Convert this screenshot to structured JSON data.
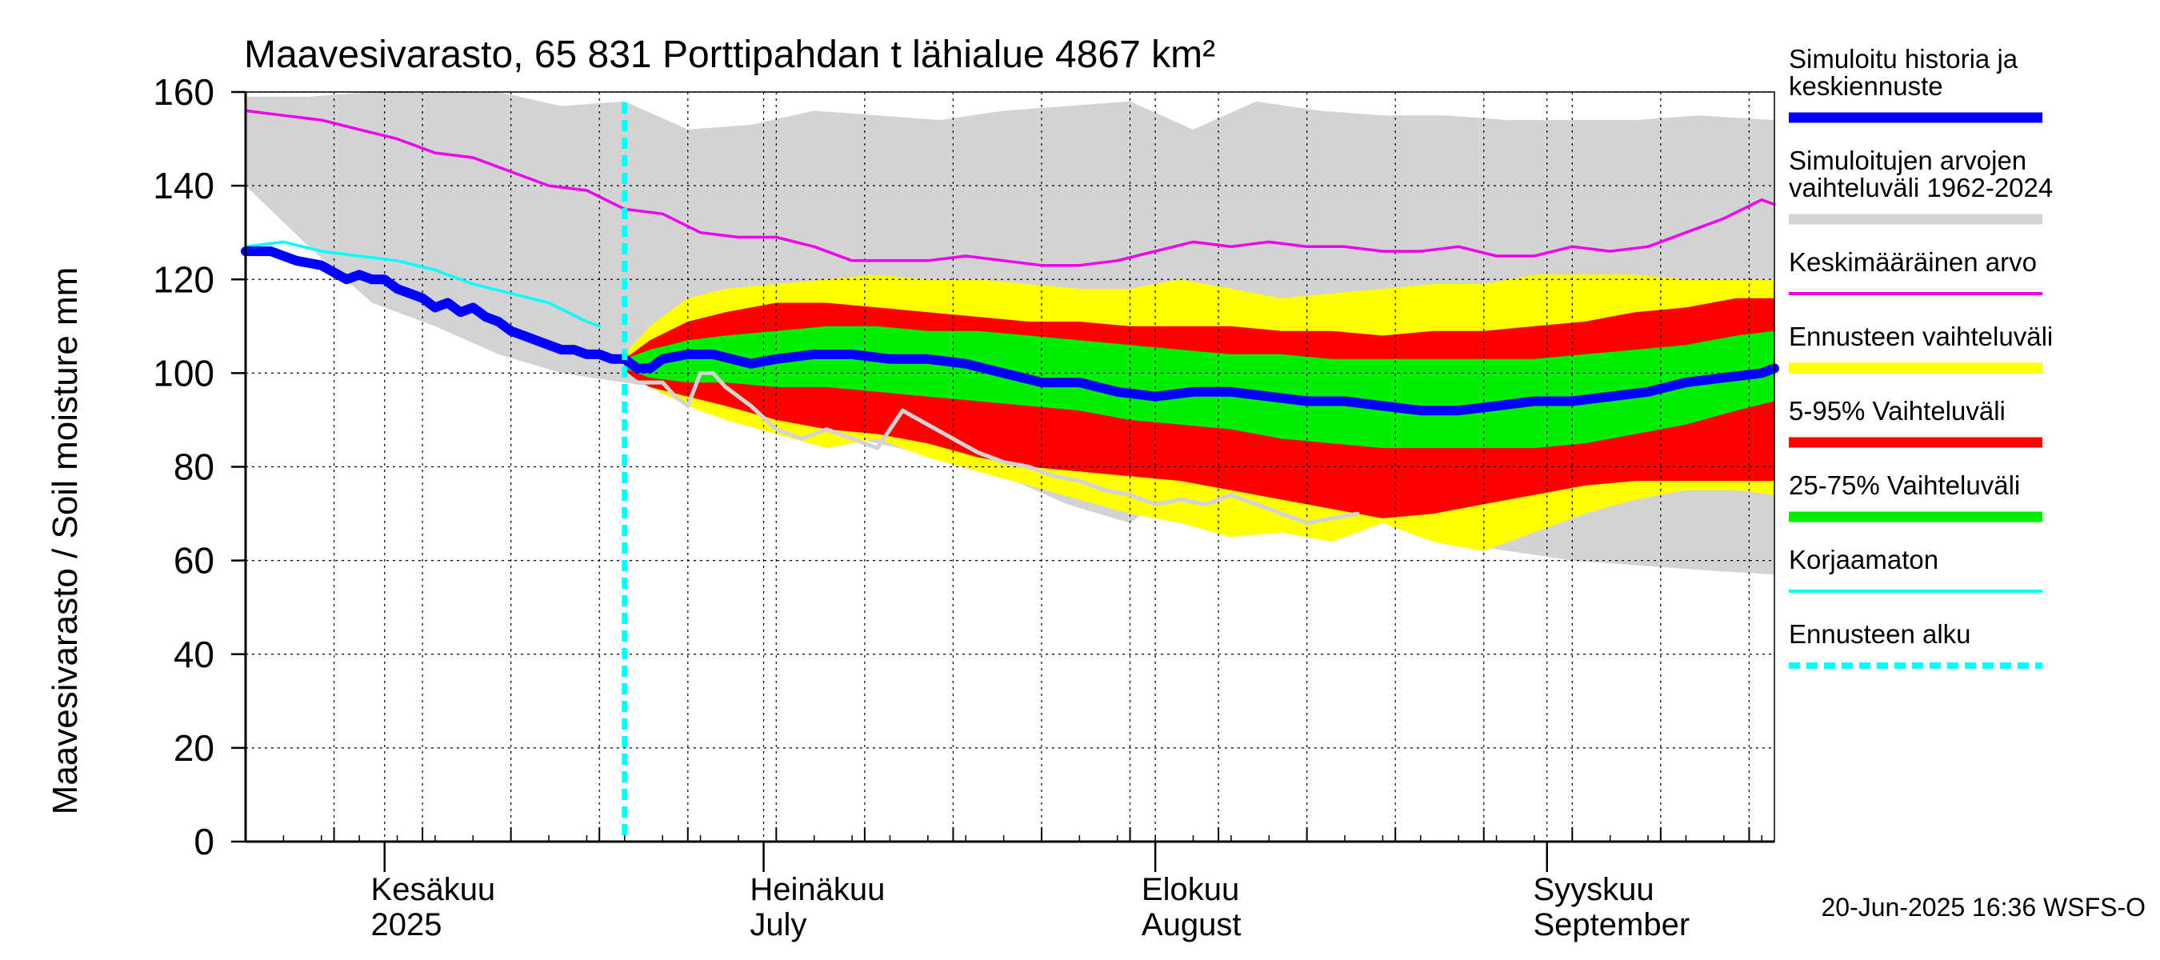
{
  "chart_data": {
    "type": "area",
    "title": "Maavesivarasto, 65 831 Porttipahdan t lähialue 4867 km²",
    "ylabel": "Maavesivarasto / Soil moisture   mm",
    "ylim": [
      0,
      160
    ],
    "yticks": [
      0,
      20,
      40,
      60,
      80,
      100,
      120,
      140,
      160
    ],
    "x_day_range": [
      0,
      121
    ],
    "forecast_start_day": 30,
    "month_labels": [
      {
        "line1": "Kesäkuu",
        "line2": "2025",
        "day": 12
      },
      {
        "line1": "Heinäkuu",
        "line2": "July",
        "day": 42
      },
      {
        "line1": "Elokuu",
        "line2": "August",
        "day": 73
      },
      {
        "line1": "Syyskuu",
        "line2": "September",
        "day": 104
      }
    ],
    "month_boundaries": [
      11,
      41,
      72,
      103
    ],
    "series": [
      {
        "name": "Simuloitujen arvojen vaihteluväli 1962-2024",
        "kind": "band",
        "color": "#d3d3d3",
        "x": [
          0,
          5,
          10,
          15,
          20,
          25,
          30,
          35,
          40,
          45,
          50,
          55,
          60,
          65,
          70,
          75,
          80,
          85,
          90,
          95,
          100,
          105,
          110,
          115,
          121
        ],
        "upper": [
          159,
          159,
          160,
          160,
          160,
          157,
          158,
          152,
          153,
          156,
          155,
          154,
          156,
          157,
          158,
          152,
          158,
          156,
          155,
          155,
          154,
          154,
          154,
          155,
          154
        ],
        "lower": [
          140,
          127,
          115,
          110,
          104,
          100,
          98,
          96,
          92,
          88,
          85,
          82,
          78,
          72,
          68,
          78,
          74,
          72,
          68,
          64,
          62,
          60,
          59,
          58,
          57
        ]
      },
      {
        "name": "Ennusteen vaihteluväli",
        "kind": "band",
        "color": "#ffff00",
        "x": [
          30,
          32,
          35,
          38,
          42,
          46,
          50,
          54,
          58,
          62,
          66,
          70,
          74,
          78,
          82,
          86,
          90,
          94,
          98,
          102,
          106,
          110,
          114,
          118,
          121
        ],
        "upper": [
          104,
          110,
          116,
          118,
          119,
          120,
          121,
          120,
          120,
          119,
          118,
          118,
          120,
          118,
          116,
          117,
          118,
          119,
          119,
          121,
          121,
          121,
          120,
          120,
          120
        ],
        "lower": [
          100,
          97,
          93,
          90,
          87,
          84,
          86,
          82,
          79,
          76,
          73,
          70,
          68,
          65,
          66,
          64,
          68,
          64,
          62,
          66,
          70,
          73,
          75,
          75,
          74
        ]
      },
      {
        "name": "5-95% Vaihteluväli",
        "kind": "band",
        "color": "#ff0000",
        "x": [
          30,
          32,
          35,
          38,
          42,
          46,
          50,
          54,
          58,
          62,
          66,
          70,
          74,
          78,
          82,
          86,
          90,
          94,
          98,
          102,
          106,
          110,
          114,
          118,
          121
        ],
        "upper": [
          103,
          107,
          111,
          113,
          115,
          115,
          114,
          113,
          112,
          111,
          111,
          110,
          110,
          110,
          109,
          109,
          108,
          109,
          109,
          110,
          111,
          113,
          114,
          116,
          116
        ],
        "lower": [
          100,
          97,
          95,
          93,
          90,
          88,
          87,
          85,
          82,
          80,
          79,
          78,
          77,
          75,
          73,
          71,
          69,
          70,
          72,
          74,
          76,
          77,
          77,
          77,
          77
        ]
      },
      {
        "name": "25-75% Vaihteluväli",
        "kind": "band",
        "color": "#00ee00",
        "x": [
          30,
          32,
          35,
          38,
          42,
          46,
          50,
          54,
          58,
          62,
          66,
          70,
          74,
          78,
          82,
          86,
          90,
          94,
          98,
          102,
          106,
          110,
          114,
          118,
          121
        ],
        "upper": [
          103,
          105,
          107,
          108,
          109,
          110,
          110,
          109,
          109,
          108,
          107,
          106,
          105,
          104,
          104,
          103,
          103,
          103,
          103,
          103,
          104,
          105,
          106,
          108,
          109
        ],
        "lower": [
          101,
          99,
          98,
          98,
          97,
          97,
          96,
          95,
          94,
          93,
          92,
          90,
          89,
          88,
          86,
          85,
          84,
          84,
          84,
          84,
          85,
          87,
          89,
          92,
          94
        ]
      },
      {
        "name": "Keskimääräinen arvo",
        "kind": "line",
        "color": "#ee00ee",
        "x": [
          0,
          3,
          6,
          9,
          12,
          15,
          18,
          21,
          24,
          27,
          30,
          33,
          36,
          39,
          42,
          45,
          48,
          51,
          54,
          57,
          60,
          63,
          66,
          69,
          72,
          75,
          78,
          81,
          84,
          87,
          90,
          93,
          96,
          99,
          102,
          105,
          108,
          111,
          114,
          117,
          120,
          121
        ],
        "y": [
          156,
          155,
          154,
          152,
          150,
          147,
          146,
          143,
          140,
          139,
          135,
          134,
          130,
          129,
          129,
          127,
          124,
          124,
          124,
          125,
          124,
          123,
          123,
          124,
          126,
          128,
          127,
          128,
          127,
          127,
          126,
          126,
          127,
          125,
          125,
          127,
          126,
          127,
          130,
          133,
          137,
          136
        ]
      },
      {
        "name": "Korjaamaton",
        "kind": "line",
        "color": "#00ffff",
        "x": [
          0,
          3,
          6,
          9,
          12,
          15,
          18,
          21,
          24,
          27,
          28
        ],
        "y": [
          127,
          128,
          126,
          125,
          124,
          122,
          119,
          117,
          115,
          111,
          110
        ]
      },
      {
        "name": "Simuloitu historia ja keskiennuste",
        "kind": "line",
        "color": "#0000ff",
        "x": [
          0,
          2,
          4,
          6,
          8,
          9,
          10,
          11,
          12,
          13,
          14,
          15,
          16,
          17,
          18,
          19,
          20,
          21,
          22,
          23,
          24,
          25,
          26,
          27,
          28,
          29,
          30,
          31,
          32,
          33,
          35,
          37,
          40,
          42,
          45,
          48,
          51,
          54,
          57,
          60,
          63,
          66,
          69,
          72,
          75,
          78,
          81,
          84,
          87,
          90,
          93,
          96,
          99,
          102,
          105,
          108,
          111,
          114,
          117,
          120,
          121
        ],
        "y": [
          126,
          126,
          124,
          123,
          120,
          121,
          120,
          120,
          118,
          117,
          116,
          114,
          115,
          113,
          114,
          112,
          111,
          109,
          108,
          107,
          106,
          105,
          105,
          104,
          104,
          103,
          103,
          101,
          101,
          103,
          104,
          104,
          102,
          103,
          104,
          104,
          103,
          103,
          102,
          100,
          98,
          98,
          96,
          95,
          96,
          96,
          95,
          94,
          94,
          93,
          92,
          92,
          93,
          94,
          94,
          95,
          96,
          98,
          99,
          100,
          101
        ]
      },
      {
        "name": "grey-history-line",
        "kind": "line",
        "color": "#d3d3d3",
        "x": [
          30,
          31,
          33,
          34,
          35,
          36,
          37,
          38,
          40,
          42,
          44,
          46,
          48,
          50,
          52,
          54,
          56,
          58,
          60,
          62,
          64,
          66,
          68,
          70,
          72,
          74,
          76,
          78,
          80,
          82,
          84,
          86,
          88
        ],
        "y": [
          100,
          98,
          98,
          95,
          93,
          100,
          100,
          97,
          93,
          88,
          86,
          88,
          86,
          84,
          92,
          89,
          86,
          83,
          81,
          80,
          78,
          77,
          75,
          74,
          72,
          73,
          72,
          74,
          72,
          70,
          68,
          69,
          70
        ]
      }
    ],
    "legend": [
      {
        "label_lines": [
          "Simuloitu historia ja",
          "keskiennuste"
        ],
        "color": "#0000ff",
        "style": "thick"
      },
      {
        "label_lines": [
          "Simuloitujen arvojen",
          "vaihteluväli 1962-2024"
        ],
        "color": "#d3d3d3",
        "style": "thick"
      },
      {
        "label_lines": [
          "Keskimääräinen arvo"
        ],
        "color": "#ee00ee",
        "style": "thin"
      },
      {
        "label_lines": [
          "Ennusteen vaihteluväli"
        ],
        "color": "#ffff00",
        "style": "thick"
      },
      {
        "label_lines": [
          "5-95% Vaihteluväli"
        ],
        "color": "#ff0000",
        "style": "thick"
      },
      {
        "label_lines": [
          "25-75% Vaihteluväli"
        ],
        "color": "#00ee00",
        "style": "thick"
      },
      {
        "label_lines": [
          "Korjaamaton"
        ],
        "color": "#00ffff",
        "style": "thin"
      },
      {
        "label_lines": [
          "Ennusteen alku"
        ],
        "color": "#00ffff",
        "style": "dashed"
      }
    ],
    "footer": "20-Jun-2025 16:36 WSFS-O"
  }
}
